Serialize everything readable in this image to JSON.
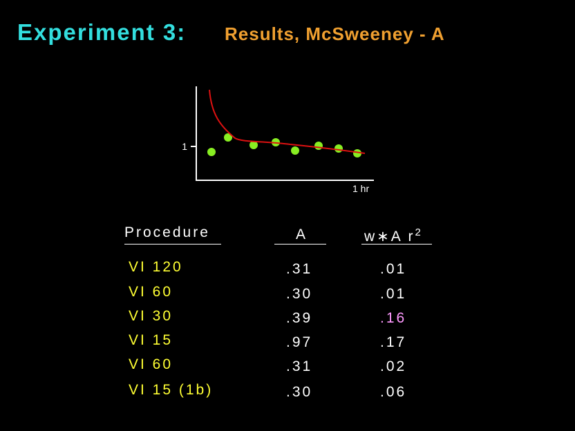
{
  "header": {
    "title": "Experiment 3:",
    "subtitle": "Results, McSweeney - A"
  },
  "figure": {
    "y_label": "1",
    "x_label": "1 hr"
  },
  "table": {
    "columns": [
      "Procedure",
      "A",
      "w∗A",
      "r",
      "2"
    ],
    "rows": [
      [
        "VI 120",
        ".31",
        ".01"
      ],
      [
        "VI 60",
        ".30",
        ".01"
      ],
      [
        "VI 30",
        ".39",
        ".16"
      ],
      [
        "VI 15",
        ".97",
        ".17"
      ],
      [
        "VI 60",
        ".31",
        ".02"
      ],
      [
        "VI 15 (1b)",
        ".30",
        ".06"
      ]
    ]
  }
}
